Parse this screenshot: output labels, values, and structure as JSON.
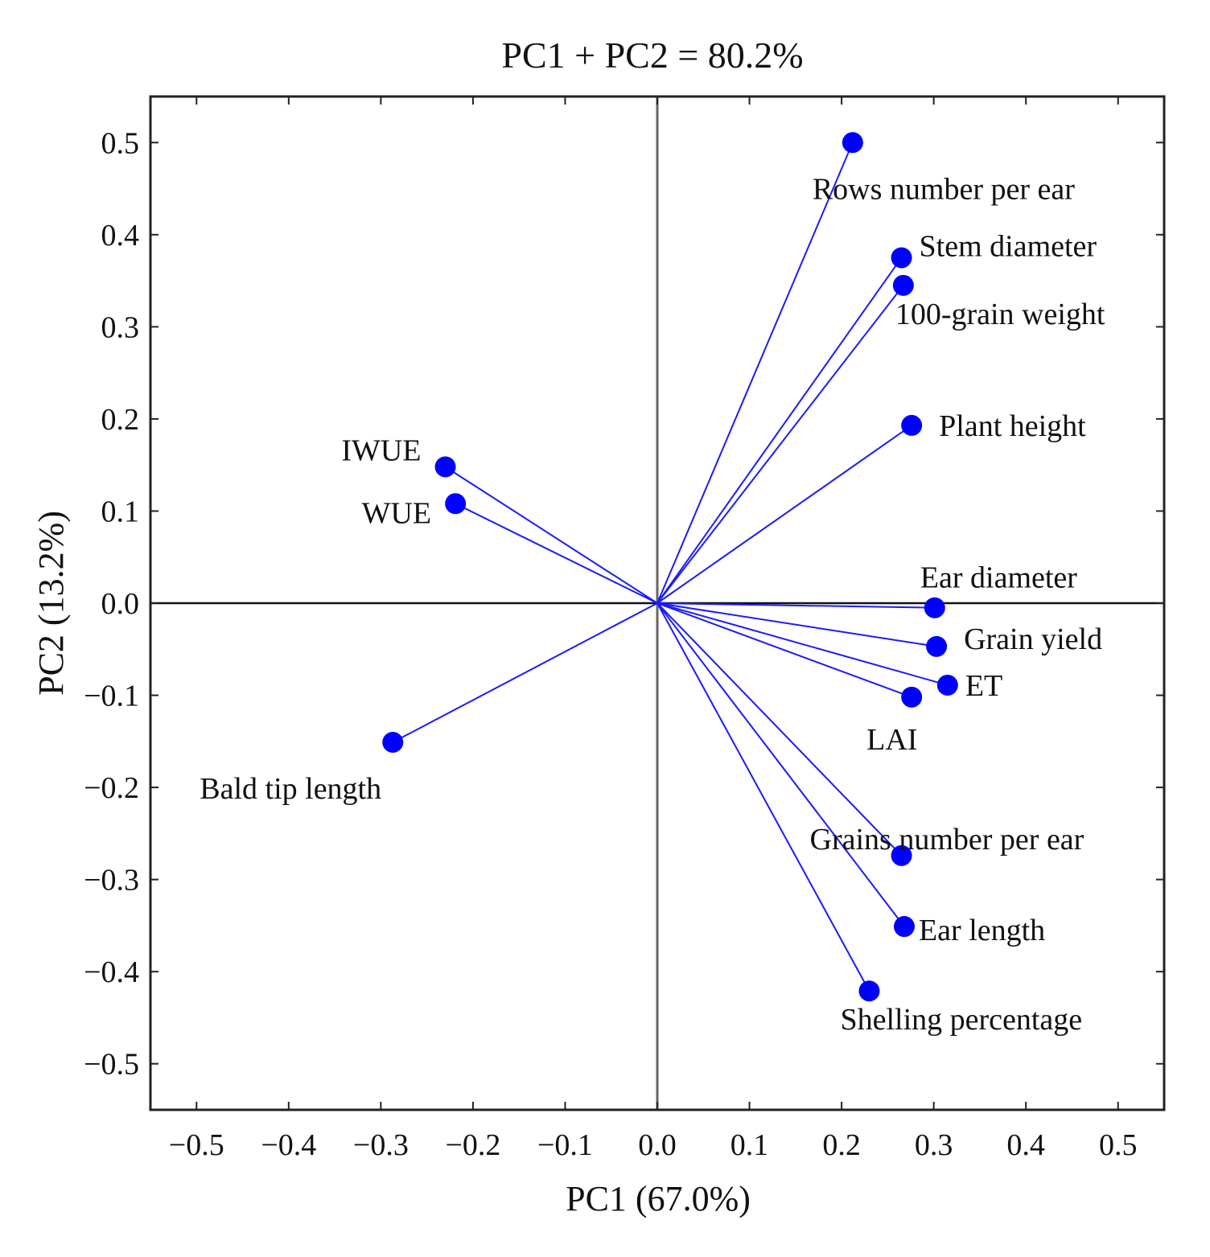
{
  "chart_data": {
    "type": "scatter",
    "subtype": "pca-loading-biplot",
    "title": "PC1 + PC2 = 80.2%",
    "xlabel": "PC1 (67.0%)",
    "ylabel": "PC2 (13.2%)",
    "xlim": [
      -0.55,
      0.55
    ],
    "ylim": [
      -0.55,
      0.55
    ],
    "xticks": [
      -0.5,
      -0.4,
      -0.3,
      -0.2,
      -0.1,
      0.0,
      0.1,
      0.2,
      0.3,
      0.4,
      0.5
    ],
    "yticks": [
      -0.5,
      -0.4,
      -0.3,
      -0.2,
      -0.1,
      0.0,
      0.1,
      0.2,
      0.3,
      0.4,
      0.5
    ],
    "xtick_labels": [
      "−0.5",
      "−0.4",
      "−0.3",
      "−0.2",
      "−0.1",
      "0.0",
      "0.1",
      "0.2",
      "0.3",
      "0.4",
      "0.5"
    ],
    "ytick_labels": [
      "−0.5",
      "−0.4",
      "−0.3",
      "−0.2",
      "−0.1",
      "0.0",
      "0.1",
      "0.2",
      "0.3",
      "0.4",
      "0.5"
    ],
    "origin": [
      0,
      0
    ],
    "colors": {
      "vector": "#1a1aff",
      "point": "#0000ff"
    },
    "points": [
      {
        "name": "Rows number per ear",
        "x": 0.212,
        "y": 0.5
      },
      {
        "name": "Stem diameter",
        "x": 0.265,
        "y": 0.375
      },
      {
        "name": "100-grain weight",
        "x": 0.267,
        "y": 0.345
      },
      {
        "name": "Plant height",
        "x": 0.276,
        "y": 0.193
      },
      {
        "name": "IWUE",
        "x": -0.23,
        "y": 0.148
      },
      {
        "name": "WUE",
        "x": -0.219,
        "y": 0.108
      },
      {
        "name": "Ear diameter",
        "x": 0.301,
        "y": -0.005
      },
      {
        "name": "Grain yield",
        "x": 0.303,
        "y": -0.047
      },
      {
        "name": "ET",
        "x": 0.315,
        "y": -0.089
      },
      {
        "name": "LAI",
        "x": 0.276,
        "y": -0.102
      },
      {
        "name": "Bald tip length",
        "x": -0.287,
        "y": -0.151
      },
      {
        "name": "Grains number per ear",
        "x": 0.265,
        "y": -0.274
      },
      {
        "name": "Ear length",
        "x": 0.268,
        "y": -0.351
      },
      {
        "name": "Shelling percentage",
        "x": 0.23,
        "y": -0.421
      }
    ]
  }
}
